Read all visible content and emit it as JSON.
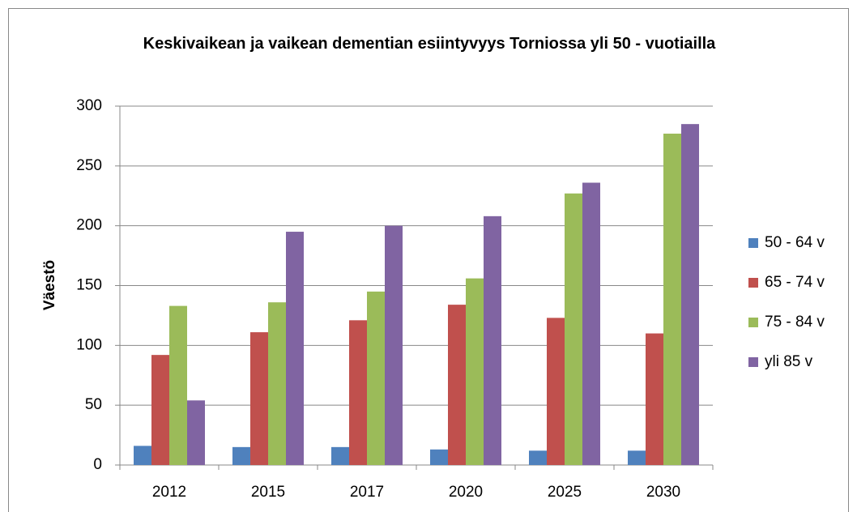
{
  "chart_data": {
    "type": "bar",
    "title": "Keskivaikean ja vaikean dementian esiintyvyys Torniossa  yli 50  - vuotiailla",
    "y_label": "Väestö",
    "categories": [
      "2012",
      "2015",
      "2017",
      "2020",
      "2025",
      "2030"
    ],
    "series": [
      {
        "name": "50 - 64 v",
        "color": "#4f81bd",
        "values": [
          16,
          15,
          15,
          13,
          12,
          12
        ]
      },
      {
        "name": "65 - 74 v",
        "color": "#c0504d",
        "values": [
          92,
          111,
          121,
          134,
          123,
          110
        ]
      },
      {
        "name": "75 - 84 v",
        "color": "#9bbb59",
        "values": [
          133,
          136,
          145,
          156,
          227,
          277
        ]
      },
      {
        "name": "yli 85 v",
        "color": "#8064a2",
        "values": [
          54,
          195,
          200,
          208,
          236,
          285
        ]
      }
    ],
    "ylim": [
      0,
      300
    ],
    "yticks": [
      0,
      50,
      100,
      150,
      200,
      250,
      300
    ],
    "grid": true,
    "legend": "right"
  }
}
